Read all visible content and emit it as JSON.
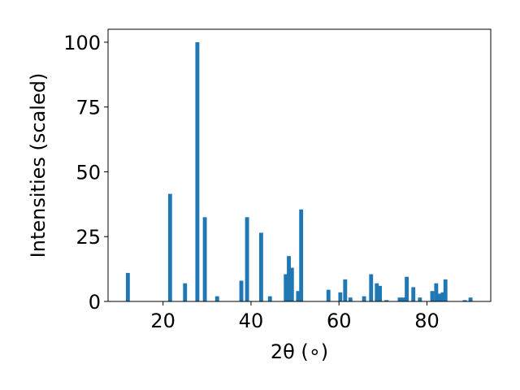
{
  "chart_data": {
    "type": "bar",
    "title": "",
    "xlabel": "2θ (∘)",
    "ylabel": "Intensities (scaled)",
    "xlim": [
      7.5,
      94.5
    ],
    "ylim": [
      0,
      105
    ],
    "xticks": [
      20,
      40,
      60,
      80
    ],
    "yticks": [
      0,
      25,
      50,
      75,
      100
    ],
    "grid": false,
    "bar_color": "#1f77b4",
    "bar_width": 0.9,
    "x": [
      12.0,
      21.6,
      25.0,
      27.8,
      29.5,
      32.3,
      37.8,
      39.1,
      42.3,
      44.3,
      47.9,
      48.6,
      49.3,
      50.7,
      51.4,
      57.6,
      60.3,
      61.4,
      62.6,
      65.7,
      67.3,
      68.6,
      69.3,
      70.8,
      73.8,
      74.6,
      75.4,
      76.9,
      78.4,
      81.2,
      82.1,
      82.8,
      83.6,
      84.2,
      88.6,
      89.9
    ],
    "values": [
      11.0,
      41.5,
      7.0,
      100.0,
      32.5,
      2.0,
      8.0,
      32.5,
      26.5,
      2.0,
      10.5,
      17.5,
      13.0,
      4.0,
      35.5,
      4.5,
      3.5,
      8.5,
      1.5,
      2.0,
      10.5,
      7.0,
      6.0,
      0.5,
      1.5,
      1.5,
      9.5,
      5.5,
      1.5,
      4.0,
      7.0,
      3.0,
      3.5,
      8.5,
      0.5,
      1.5
    ]
  }
}
